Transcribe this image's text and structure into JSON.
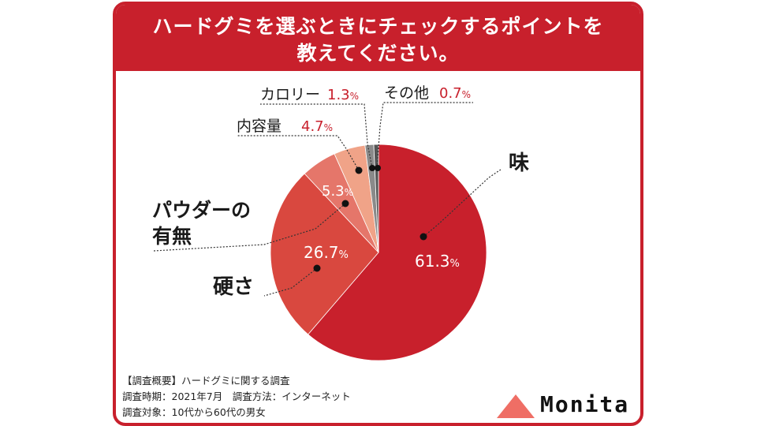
{
  "title": {
    "line1": "ハードグミを選ぶときにチェックするポイントを",
    "line2": "教えてください。"
  },
  "chart_data": {
    "type": "pie",
    "start": "12 o'clock, clockwise",
    "slices": [
      {
        "label": "味",
        "value": 61.3,
        "value_text": "61.3",
        "color": "#c8202c"
      },
      {
        "label": "硬さ",
        "value": 26.7,
        "value_text": "26.7",
        "color": "#d9483f"
      },
      {
        "label": "パウダーの有無",
        "value": 5.3,
        "value_text": "5.3",
        "color": "#e5766a"
      },
      {
        "label": "内容量",
        "value": 4.7,
        "value_text": "4.7",
        "color": "#f0a388"
      },
      {
        "label": "カロリー",
        "value": 1.3,
        "value_text": "1.3",
        "color": "#8a8a8a"
      },
      {
        "label": "その他",
        "value": 0.7,
        "value_text": "0.7",
        "color": "#555555"
      }
    ],
    "percent_sign": "%",
    "labels": {
      "taste": "味",
      "hardness": "硬さ",
      "powder_line1": "パウダーの",
      "powder_line2": "有無",
      "amount": "内容量",
      "calorie": "カロリー",
      "other": "その他"
    }
  },
  "footer": {
    "line1": "【調査概要】ハードグミに関する調査",
    "line2": "調査時期：2021年7月　調査方法：インターネット",
    "line3": "調査対象：10代から60代の男女"
  },
  "logo": {
    "text": "Monita",
    "color": "#ef6e65"
  }
}
